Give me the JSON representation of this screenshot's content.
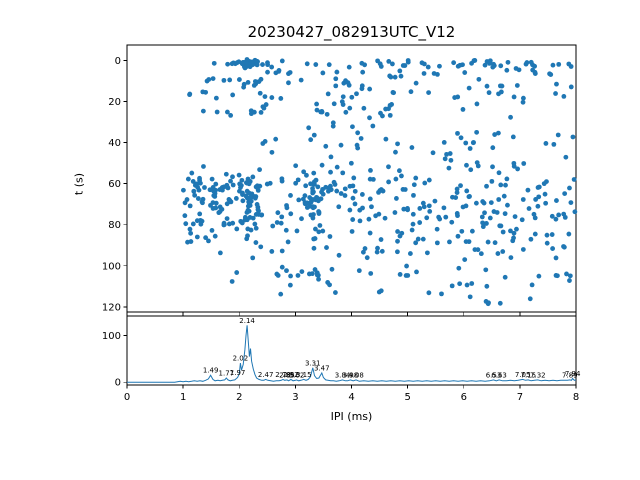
{
  "figure": {
    "background": "#ffffff",
    "accent_color": "#1f77b4"
  },
  "chart_data": [
    {
      "type": "scatter",
      "title": "20230427_082913UTC_V12",
      "xlabel": "IPI (ms)",
      "ylabel": "t (s)",
      "xlim": [
        0,
        8
      ],
      "ylim": [
        122.5,
        -7.5
      ],
      "y_inverted": true,
      "xticks": [
        0,
        1,
        2,
        3,
        4,
        5,
        6,
        7,
        8
      ],
      "yticks": [
        0,
        20,
        40,
        60,
        80,
        100,
        120
      ],
      "marker_color": "#1f77b4",
      "marker_radius": 2.4,
      "seed": 3,
      "bands": [
        {
          "t": [
            0,
            3
          ],
          "x": [
            1.5,
            8
          ],
          "n": 48,
          "clusters": [
            {
              "cx": 2.2,
              "sx": 0.13,
              "ct": 1.3,
              "st": 0.9,
              "n": 30
            }
          ]
        },
        {
          "t": [
            3,
            7
          ],
          "x": [
            1.1,
            8
          ],
          "n": 26
        },
        {
          "t": [
            7,
            14
          ],
          "x": [
            1.2,
            8
          ],
          "n": 30,
          "clusters": [
            {
              "cx": 2.3,
              "sx": 0.16,
              "ct": 11,
              "st": 1.6,
              "n": 8
            }
          ]
        },
        {
          "t": [
            15,
            19
          ],
          "x": [
            1.05,
            8
          ],
          "n": 27
        },
        {
          "t": [
            20,
            28
          ],
          "x": [
            1.1,
            7.6
          ],
          "n": 24,
          "clusters": [
            {
              "cx": 2.32,
              "sx": 0.1,
              "ct": 24,
              "st": 1.6,
              "n": 6
            },
            {
              "cx": 3.42,
              "sx": 0.09,
              "ct": 25,
              "st": 0.8,
              "n": 5
            }
          ]
        },
        {
          "t": [
            29,
            33
          ],
          "x": [
            2.6,
            6.0
          ],
          "n": 5
        },
        {
          "t": [
            35,
            43
          ],
          "x": [
            1.5,
            8
          ],
          "n": 30
        },
        {
          "t": [
            44,
            51
          ],
          "x": [
            2.5,
            8
          ],
          "n": 13
        },
        {
          "t": [
            51,
            56
          ],
          "x": [
            1.3,
            8
          ],
          "n": 20
        },
        {
          "t": [
            56,
            81
          ],
          "x": [
            1.0,
            8
          ],
          "n": 225,
          "xpow": 1.15,
          "clusters": [
            {
              "cx": 2.18,
              "sx": 0.09,
              "ct": 69,
              "st": 7,
              "n": 45
            },
            {
              "cx": 3.32,
              "sx": 0.09,
              "ct": 68,
              "st": 7,
              "n": 30
            },
            {
              "cx": 1.5,
              "sx": 0.28,
              "ct": 64,
              "st": 5,
              "n": 25
            }
          ]
        },
        {
          "t": [
            82,
            89
          ],
          "x": [
            1.0,
            8
          ],
          "n": 55
        },
        {
          "t": [
            90,
            97
          ],
          "x": [
            1.1,
            8
          ],
          "n": 28
        },
        {
          "t": [
            100,
            110
          ],
          "x": [
            1.2,
            8
          ],
          "n": 36,
          "clusters": [
            {
              "cx": 3.3,
              "sx": 0.15,
              "ct": 105,
              "st": 2,
              "n": 6
            }
          ]
        },
        {
          "t": [
            112,
            120
          ],
          "x": [
            2.0,
            7.5
          ],
          "n": 12
        }
      ]
    },
    {
      "type": "line",
      "xlabel": "IPI (ms)",
      "ylabel": "",
      "xlim": [
        0,
        8
      ],
      "ylim": [
        -6,
        142
      ],
      "xticks": [
        0,
        1,
        2,
        3,
        4,
        5,
        6,
        7,
        8
      ],
      "yticks": [
        0,
        100
      ],
      "line_color": "#1f77b4",
      "curve": [
        [
          0,
          0
        ],
        [
          0.85,
          0
        ],
        [
          0.9,
          1
        ],
        [
          0.95,
          2
        ],
        [
          1.0,
          1
        ],
        [
          1.05,
          2
        ],
        [
          1.1,
          1
        ],
        [
          1.15,
          2
        ],
        [
          1.2,
          3
        ],
        [
          1.25,
          2
        ],
        [
          1.3,
          3
        ],
        [
          1.35,
          2
        ],
        [
          1.4,
          4
        ],
        [
          1.45,
          7
        ],
        [
          1.49,
          15
        ],
        [
          1.53,
          6
        ],
        [
          1.57,
          3
        ],
        [
          1.62,
          4
        ],
        [
          1.66,
          3
        ],
        [
          1.7,
          4
        ],
        [
          1.74,
          5
        ],
        [
          1.77,
          9
        ],
        [
          1.8,
          5
        ],
        [
          1.84,
          3
        ],
        [
          1.88,
          4
        ],
        [
          1.92,
          5
        ],
        [
          1.97,
          10
        ],
        [
          2.0,
          18
        ],
        [
          2.02,
          41
        ],
        [
          2.04,
          26
        ],
        [
          2.07,
          38
        ],
        [
          2.1,
          70
        ],
        [
          2.12,
          100
        ],
        [
          2.14,
          122
        ],
        [
          2.16,
          90
        ],
        [
          2.18,
          55
        ],
        [
          2.2,
          72
        ],
        [
          2.22,
          45
        ],
        [
          2.25,
          28
        ],
        [
          2.28,
          16
        ],
        [
          2.31,
          9
        ],
        [
          2.35,
          6
        ],
        [
          2.4,
          4
        ],
        [
          2.44,
          4
        ],
        [
          2.47,
          6
        ],
        [
          2.51,
          4
        ],
        [
          2.56,
          3
        ],
        [
          2.61,
          2
        ],
        [
          2.66,
          3
        ],
        [
          2.71,
          3
        ],
        [
          2.75,
          4
        ],
        [
          2.78,
          6
        ],
        [
          2.81,
          4
        ],
        [
          2.85,
          5
        ],
        [
          2.88,
          3
        ],
        [
          2.92,
          6
        ],
        [
          2.96,
          3
        ],
        [
          3.0,
          4
        ],
        [
          3.02,
          5
        ],
        [
          3.06,
          3
        ],
        [
          3.1,
          4
        ],
        [
          3.15,
          6
        ],
        [
          3.19,
          4
        ],
        [
          3.23,
          6
        ],
        [
          3.27,
          12
        ],
        [
          3.31,
          31
        ],
        [
          3.34,
          14
        ],
        [
          3.38,
          8
        ],
        [
          3.42,
          9
        ],
        [
          3.47,
          20
        ],
        [
          3.5,
          10
        ],
        [
          3.54,
          5
        ],
        [
          3.58,
          4
        ],
        [
          3.63,
          3
        ],
        [
          3.68,
          3
        ],
        [
          3.73,
          2
        ],
        [
          3.78,
          3
        ],
        [
          3.84,
          5
        ],
        [
          3.89,
          3
        ],
        [
          3.93,
          3
        ],
        [
          3.98,
          5
        ],
        [
          4.03,
          3
        ],
        [
          4.08,
          5
        ],
        [
          4.14,
          2
        ],
        [
          4.22,
          3
        ],
        [
          4.3,
          2
        ],
        [
          4.38,
          3
        ],
        [
          4.46,
          2
        ],
        [
          4.54,
          3
        ],
        [
          4.62,
          2
        ],
        [
          4.7,
          3
        ],
        [
          4.78,
          2
        ],
        [
          4.86,
          3
        ],
        [
          4.94,
          2
        ],
        [
          5.02,
          3
        ],
        [
          5.1,
          2
        ],
        [
          5.18,
          3
        ],
        [
          5.26,
          2
        ],
        [
          5.34,
          3
        ],
        [
          5.42,
          2
        ],
        [
          5.5,
          3
        ],
        [
          5.58,
          2
        ],
        [
          5.66,
          3
        ],
        [
          5.74,
          2
        ],
        [
          5.82,
          3
        ],
        [
          5.9,
          2
        ],
        [
          5.98,
          3
        ],
        [
          6.06,
          2
        ],
        [
          6.14,
          3
        ],
        [
          6.22,
          2
        ],
        [
          6.3,
          3
        ],
        [
          6.38,
          2
        ],
        [
          6.46,
          3
        ],
        [
          6.53,
          5
        ],
        [
          6.58,
          3
        ],
        [
          6.63,
          5
        ],
        [
          6.69,
          3
        ],
        [
          6.76,
          3
        ],
        [
          6.83,
          4
        ],
        [
          6.9,
          3
        ],
        [
          6.97,
          4
        ],
        [
          7.05,
          6
        ],
        [
          7.1,
          4
        ],
        [
          7.15,
          5
        ],
        [
          7.2,
          3
        ],
        [
          7.26,
          4
        ],
        [
          7.32,
          5
        ],
        [
          7.38,
          3
        ],
        [
          7.45,
          4
        ],
        [
          7.52,
          3
        ],
        [
          7.59,
          4
        ],
        [
          7.66,
          3
        ],
        [
          7.73,
          4
        ],
        [
          7.8,
          4
        ],
        [
          7.85,
          4
        ],
        [
          7.89,
          5
        ],
        [
          7.92,
          4
        ],
        [
          7.94,
          8
        ],
        [
          7.97,
          4
        ],
        [
          8.0,
          5
        ]
      ],
      "annotations": [
        {
          "x": 1.49,
          "label": "1.49",
          "h": 15
        },
        {
          "x": 1.77,
          "label": "1.77",
          "h": 9
        },
        {
          "x": 1.97,
          "label": "1.97",
          "h": 10
        },
        {
          "x": 2.02,
          "label": "2.02",
          "h": 41
        },
        {
          "x": 2.14,
          "label": "2.14",
          "h": 122
        },
        {
          "x": 2.47,
          "label": "2.47",
          "h": 6
        },
        {
          "x": 2.78,
          "label": "2.78",
          "h": 6
        },
        {
          "x": 2.85,
          "label": "2.85",
          "h": 5
        },
        {
          "x": 2.92,
          "label": "2.92",
          "h": 6
        },
        {
          "x": 3.02,
          "label": "3.02",
          "h": 5
        },
        {
          "x": 3.15,
          "label": "3.15",
          "h": 6
        },
        {
          "x": 3.31,
          "label": "3.31",
          "h": 31
        },
        {
          "x": 3.47,
          "label": "3.47",
          "h": 20
        },
        {
          "x": 3.84,
          "label": "3.84",
          "h": 5
        },
        {
          "x": 3.98,
          "label": "3.98",
          "h": 5
        },
        {
          "x": 4.08,
          "label": "4.08",
          "h": 5
        },
        {
          "x": 6.53,
          "label": "6.53",
          "h": 5
        },
        {
          "x": 6.63,
          "label": "6.63",
          "h": 5
        },
        {
          "x": 7.05,
          "label": "7.05",
          "h": 6
        },
        {
          "x": 7.15,
          "label": "7.15",
          "h": 5
        },
        {
          "x": 7.32,
          "label": "7.32",
          "h": 5
        },
        {
          "x": 7.89,
          "label": "7.89",
          "h": 5
        },
        {
          "x": 7.94,
          "label": "7.94",
          "h": 8
        }
      ]
    }
  ]
}
